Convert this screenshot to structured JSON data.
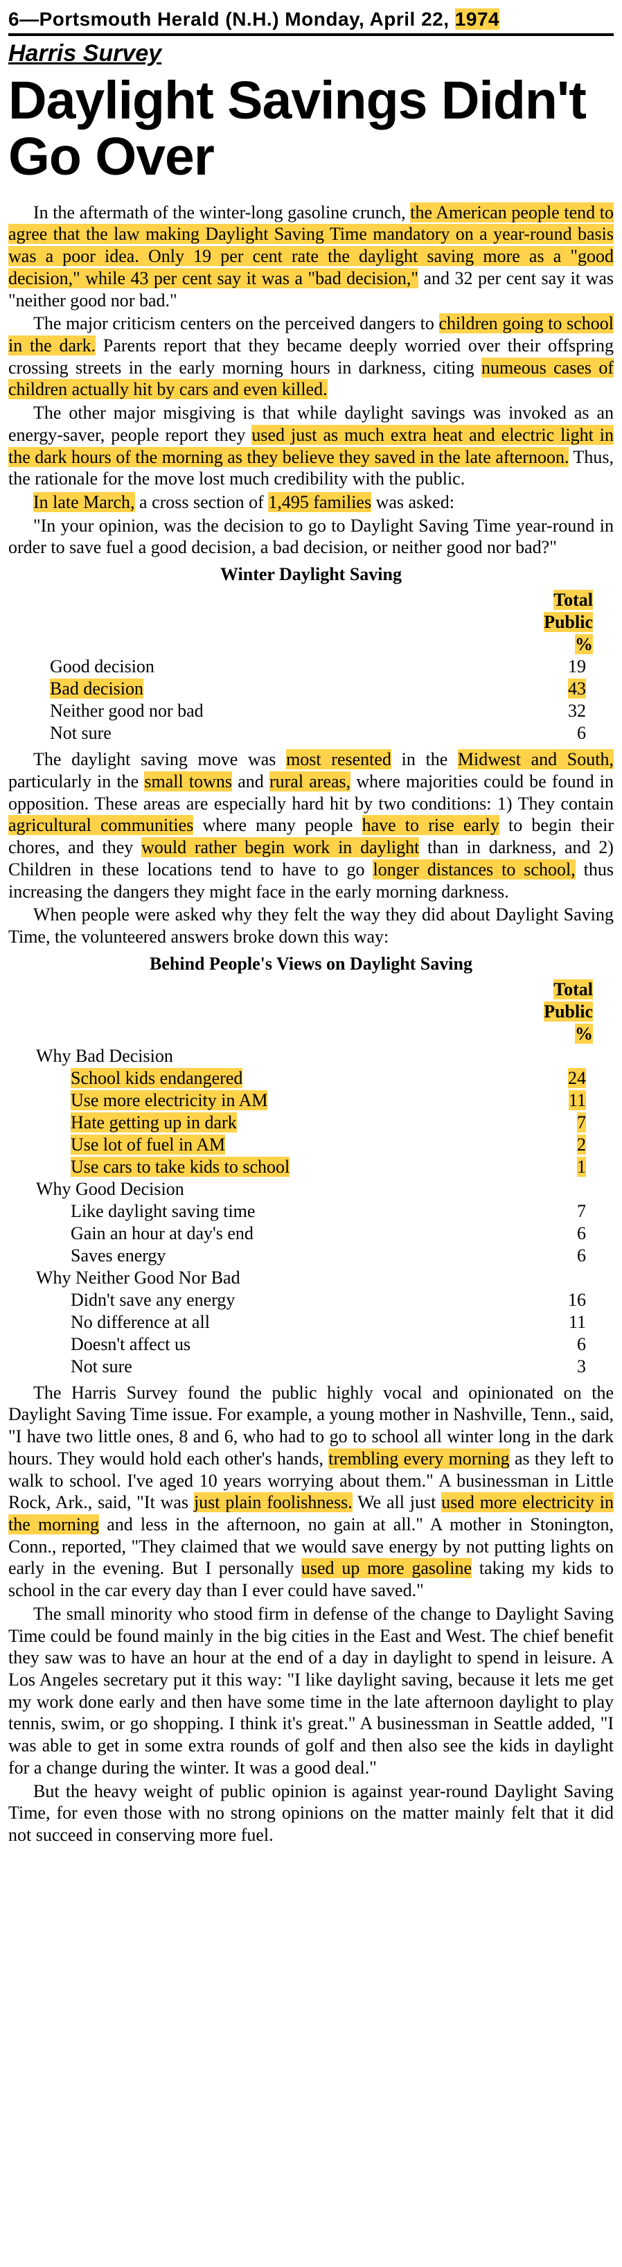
{
  "masthead": {
    "prefix": "6—Portsmouth Herald (N.H.) Monday, April 22, ",
    "year": "1974"
  },
  "kicker": "Harris Survey",
  "headline": "Daylight Savings Didn't Go Over",
  "colors": {
    "highlight": "#ffd24a",
    "text": "#000000",
    "background": "#ffffff"
  },
  "table1": {
    "title": "Winter Daylight Saving",
    "col_header": [
      "Total",
      "Public",
      "%"
    ],
    "rows": [
      {
        "label": "Good decision",
        "value": "19",
        "highlight": false
      },
      {
        "label": "Bad decision",
        "value": "43",
        "highlight": true
      },
      {
        "label": "Neither good nor bad",
        "value": "32",
        "highlight": false
      },
      {
        "label": "Not sure",
        "value": "6",
        "highlight": false
      }
    ]
  },
  "table2": {
    "title": "Behind People's Views on Daylight Saving",
    "col_header": [
      "Total",
      "Public",
      "%"
    ],
    "sections": [
      {
        "heading": "Why Bad Decision",
        "rows": [
          {
            "label": "School kids endangered",
            "value": "24",
            "highlight": true
          },
          {
            "label": "Use more electricity in AM",
            "value": "11",
            "highlight": true
          },
          {
            "label": "Hate getting up in dark",
            "value": "7",
            "highlight": true
          },
          {
            "label": "Use lot of fuel in AM",
            "value": "2",
            "highlight": true
          },
          {
            "label": "Use cars to take kids to school",
            "value": "1",
            "highlight": true
          }
        ]
      },
      {
        "heading": "Why Good Decision",
        "rows": [
          {
            "label": "Like daylight saving time",
            "value": "7",
            "highlight": false
          },
          {
            "label": "Gain an hour at day's end",
            "value": "6",
            "highlight": false
          },
          {
            "label": "Saves energy",
            "value": "6",
            "highlight": false
          }
        ]
      },
      {
        "heading": "Why Neither Good Nor Bad",
        "rows": [
          {
            "label": "Didn't save any energy",
            "value": "16",
            "highlight": false
          },
          {
            "label": "No difference at all",
            "value": "11",
            "highlight": false
          },
          {
            "label": "Doesn't affect us",
            "value": "6",
            "highlight": false
          },
          {
            "label": "Not sure",
            "value": "3",
            "highlight": false
          }
        ]
      }
    ]
  },
  "paragraphs": {
    "p1a": "In the aftermath of the winter-long gasoline crunch, ",
    "p1b": "the American people tend to agree that the law making Daylight Saving Time mandatory on a year-round basis was a poor idea. Only 19 per cent rate the daylight saving more as a \"good decision,\" while 43 per cent say it was a \"bad decision,\"",
    "p1c": " and 32 per cent say it was \"neither good nor bad.\"",
    "p2a": "The major criticism centers on the perceived dangers to ",
    "p2b": "children going to school in the dark.",
    "p2c": " Parents report that they became deeply worried over their offspring crossing streets in the early morning hours in darkness, citing ",
    "p2d": "numeous cases of children actually hit by cars and even killed.",
    "p3a": "The other major misgiving is that while daylight savings was invoked as an energy-saver, people report they ",
    "p3b": "used just as much extra heat and electric light in the dark hours of the morning as they believe they saved in the late afternoon.",
    "p3c": " Thus, the rationale for the move lost much credibility with the public.",
    "p4a": "In late March,",
    "p4b": " a cross section of ",
    "p4c": "1,495 families",
    "p4d": " was asked:",
    "p5": "\"In your opinion, was the decision to go to Daylight Saving Time year-round in order to save fuel a good decision, a bad decision, or neither good nor bad?\"",
    "p6a": "The daylight saving move was ",
    "p6b": "most resented",
    "p6c": " in the ",
    "p6d": "Midwest and South,",
    "p6e": " particularly in the ",
    "p6f": "small towns",
    "p6g": " and ",
    "p6h": "rural areas,",
    "p6i": " where majorities could be found in opposition. These areas are especially hard hit by two conditions: 1) They contain ",
    "p6j": "agricultural communities",
    "p6k": " where many people ",
    "p6l": "have to rise early",
    "p6m": " to begin their chores, and they ",
    "p6n": "would rather begin work in daylight",
    "p6o": " than in darkness, and 2) Children in these locations tend to have to go ",
    "p6p": "longer distances to school,",
    "p6q": " thus increasing the dangers they might face in the early morning darkness.",
    "p7": "When people were asked why they felt the way they did about Daylight Saving Time, the volunteered answers broke down this way:",
    "p8a": "The Harris Survey found the public highly vocal and opinionated on the Daylight Saving Time issue. For example, a young mother in Nashville, Tenn., said, \"I have two little ones, 8 and 6, who had to go to school all winter long in the dark hours. They would hold each other's hands, ",
    "p8b": "trembling every morning",
    "p8c": " as they left to walk to school. I've aged 10 years worrying about them.\" A businessman in Little Rock, Ark., said, \"It was ",
    "p8d": "just plain foolishness.",
    "p8e": " We all just ",
    "p8f": "used more electricity in the morning",
    "p8g": " and less in the afternoon, no gain at all.\" A mother in Stonington, Conn., reported, \"They claimed that we would save energy by not putting lights on early in the evening. But I personally ",
    "p8h": "used up more gasoline",
    "p8i": " taking my kids to school in the car every day than I ever could have saved.\"",
    "p9": "The small minority who stood firm in defense of the change to Daylight Saving Time could be found mainly in the big cities in the East and West. The chief benefit they saw was to have an hour at the end of a day in daylight to spend in leisure. A Los Angeles secretary put it this way: \"I like daylight saving, because it lets me get my work done early and then have some time in the late afternoon daylight to play tennis, swim, or go shopping. I think it's great.\" A businessman in Seattle added, \"I was able to get in some extra rounds of golf and then also see the kids in daylight for a change during the winter. It was a good deal.\"",
    "p10": "But the heavy weight of public opinion is against year-round Daylight Saving Time, for even those with no strong opinions on the matter mainly felt that it did not succeed in conserving more fuel."
  }
}
